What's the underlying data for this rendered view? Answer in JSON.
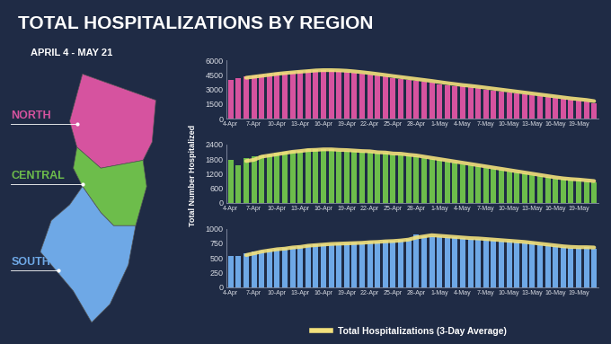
{
  "title": "TOTAL HOSPITALIZATIONS BY REGION",
  "subtitle": "APRIL 4 - MAY 21",
  "y_label": "Total Number Hospitalized",
  "map": {
    "regions": [
      "NORTH",
      "CENTRAL",
      "SOUTH"
    ]
  },
  "chart_data": [
    {
      "type": "bar",
      "categories": [
        "4-Apr",
        null,
        null,
        "7-Apr",
        null,
        null,
        "10-Apr",
        null,
        null,
        "13-Apr",
        null,
        null,
        "16-Apr",
        null,
        null,
        "19-Apr",
        null,
        null,
        "22-Apr",
        null,
        null,
        "25-Apr",
        null,
        null,
        "28-Apr",
        null,
        null,
        "1-May",
        null,
        null,
        "4-May",
        null,
        null,
        "7-May",
        null,
        null,
        "10-May",
        null,
        null,
        "13-May",
        null,
        null,
        "16-May",
        null,
        null,
        "19-May",
        null,
        null
      ],
      "series": [
        {
          "type": "bar",
          "color": "#d6539f",
          "values": [
            4000,
            4200,
            4300,
            4400,
            4500,
            4600,
            4700,
            4750,
            4800,
            4900,
            4950,
            5000,
            5000,
            4950,
            4900,
            4850,
            4750,
            4650,
            4550,
            4450,
            4300,
            4200,
            4100,
            4000,
            3900,
            3800,
            3700,
            3550,
            3450,
            3350,
            3300,
            3200,
            3100,
            3000,
            2900,
            2800,
            2700,
            2600,
            2500,
            2400,
            2300,
            2200,
            2100,
            2000,
            1950,
            1900,
            1800,
            1550
          ]
        },
        {
          "type": "line",
          "name": "Total Hospitalizations (3-Day Average)",
          "color": "#f3e17c",
          "values": [
            null,
            null,
            4200,
            4300,
            4400,
            4500,
            4600,
            4680,
            4750,
            4820,
            4880,
            4950,
            4980,
            4980,
            4960,
            4920,
            4850,
            4770,
            4680,
            4580,
            4480,
            4370,
            4270,
            4170,
            4070,
            3970,
            3870,
            3760,
            3650,
            3550,
            3450,
            3370,
            3280,
            3180,
            3080,
            2980,
            2880,
            2780,
            2680,
            2580,
            2480,
            2380,
            2280,
            2180,
            2080,
            2000,
            1920,
            1800
          ]
        }
      ],
      "ylim": [
        0,
        6000
      ],
      "yticks": [
        0,
        1500,
        3000,
        4500,
        6000
      ]
    },
    {
      "type": "bar",
      "categories": [
        "4-Apr",
        null,
        null,
        "7-Apr",
        null,
        null,
        "10-Apr",
        null,
        null,
        "13-Apr",
        null,
        null,
        "16-Apr",
        null,
        null,
        "19-Apr",
        null,
        null,
        "22-Apr",
        null,
        null,
        "25-Apr",
        null,
        null,
        "28-Apr",
        null,
        null,
        "1-May",
        null,
        null,
        "4-May",
        null,
        null,
        "7-May",
        null,
        null,
        "10-May",
        null,
        null,
        "13-May",
        null,
        null,
        "16-May",
        null,
        null,
        "19-May",
        null,
        null
      ],
      "series": [
        {
          "type": "bar",
          "color": "#6dbd4b",
          "values": [
            1750,
            1550,
            1850,
            1900,
            1950,
            2000,
            2050,
            2100,
            2150,
            2150,
            2200,
            2200,
            2200,
            2200,
            2150,
            2150,
            2150,
            2100,
            2100,
            2050,
            2050,
            2000,
            2000,
            1950,
            1900,
            1850,
            1800,
            1750,
            1700,
            1650,
            1600,
            1550,
            1500,
            1450,
            1400,
            1350,
            1300,
            1250,
            1200,
            1150,
            1100,
            1050,
            1000,
            980,
            960,
            940,
            900,
            850
          ]
        },
        {
          "type": "line",
          "name": "Total Hospitalizations (3-Day Average)",
          "color": "#f3e17c",
          "values": [
            null,
            null,
            1720,
            1770,
            1900,
            1950,
            2000,
            2050,
            2100,
            2130,
            2170,
            2180,
            2200,
            2200,
            2180,
            2170,
            2150,
            2130,
            2120,
            2080,
            2070,
            2030,
            2020,
            1980,
            1950,
            1900,
            1850,
            1800,
            1750,
            1700,
            1650,
            1600,
            1550,
            1500,
            1450,
            1400,
            1350,
            1300,
            1250,
            1200,
            1150,
            1100,
            1050,
            1010,
            980,
            960,
            930,
            900
          ]
        }
      ],
      "ylim": [
        0,
        2400
      ],
      "yticks": [
        0,
        600,
        1200,
        1800,
        2400
      ]
    },
    {
      "type": "bar",
      "categories": [
        "4-Apr",
        null,
        null,
        "7-Apr",
        null,
        null,
        "10-Apr",
        null,
        null,
        "13-Apr",
        null,
        null,
        "16-Apr",
        null,
        null,
        "19-Apr",
        null,
        null,
        "22-Apr",
        null,
        null,
        "25-Apr",
        null,
        null,
        "28-Apr",
        null,
        null,
        "1-May",
        null,
        null,
        "4-May",
        null,
        null,
        "7-May",
        null,
        null,
        "10-May",
        null,
        null,
        "13-May",
        null,
        null,
        "16-May",
        null,
        null,
        "19-May",
        null,
        null
      ],
      "series": [
        {
          "type": "bar",
          "color": "#6ea8e6",
          "values": [
            530,
            540,
            580,
            610,
            630,
            640,
            660,
            680,
            690,
            700,
            720,
            730,
            740,
            740,
            750,
            750,
            760,
            770,
            780,
            780,
            790,
            800,
            810,
            830,
            900,
            880,
            880,
            870,
            860,
            850,
            840,
            830,
            830,
            820,
            810,
            800,
            790,
            780,
            770,
            760,
            730,
            720,
            700,
            690,
            680,
            680,
            690,
            660
          ]
        },
        {
          "type": "line",
          "name": "Total Hospitalizations (3-Day Average)",
          "color": "#f3e17c",
          "values": [
            null,
            null,
            550,
            580,
            610,
            630,
            650,
            660,
            680,
            690,
            710,
            720,
            730,
            740,
            745,
            750,
            755,
            760,
            770,
            775,
            785,
            790,
            800,
            815,
            850,
            870,
            890,
            880,
            870,
            860,
            850,
            840,
            835,
            825,
            815,
            805,
            795,
            785,
            775,
            760,
            745,
            730,
            715,
            700,
            690,
            685,
            685,
            680
          ]
        }
      ],
      "ylim": [
        0,
        1000
      ],
      "yticks": [
        0,
        250,
        500,
        750,
        1000
      ],
      "legend": "lower center"
    }
  ]
}
